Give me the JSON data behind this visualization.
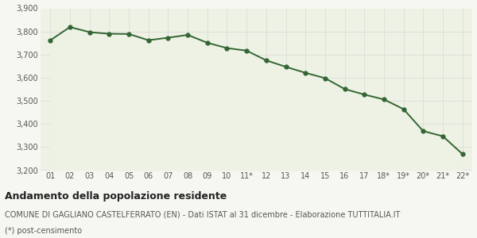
{
  "x_labels": [
    "01",
    "02",
    "03",
    "04",
    "05",
    "06",
    "07",
    "08",
    "09",
    "10",
    "11*",
    "12",
    "13",
    "14",
    "15",
    "16",
    "17",
    "18*",
    "19*",
    "20*",
    "21*",
    "22*"
  ],
  "y_values": [
    3762,
    3819,
    3797,
    3790,
    3789,
    3762,
    3773,
    3785,
    3751,
    3728,
    3717,
    3675,
    3647,
    3621,
    3598,
    3551,
    3527,
    3506,
    3464,
    3369,
    3347,
    3270
  ],
  "ylim": [
    3200,
    3900
  ],
  "yticks": [
    3200,
    3300,
    3400,
    3500,
    3600,
    3700,
    3800,
    3900
  ],
  "line_color": "#336633",
  "fill_color": "#eef2e4",
  "marker": "o",
  "marker_size": 3.5,
  "line_width": 1.4,
  "background_color": "#f7f7f2",
  "plot_bg_color": "#eef2e4",
  "grid_color": "#d8d8d8",
  "title": "Andamento della popolazione residente",
  "subtitle": "COMUNE DI GAGLIANO CASTELFERRATO (EN) - Dati ISTAT al 31 dicembre - Elaborazione TUTTITALIA.IT",
  "footnote": "(*) post-censimento",
  "title_fontsize": 9,
  "subtitle_fontsize": 7,
  "footnote_fontsize": 7,
  "tick_fontsize": 7
}
